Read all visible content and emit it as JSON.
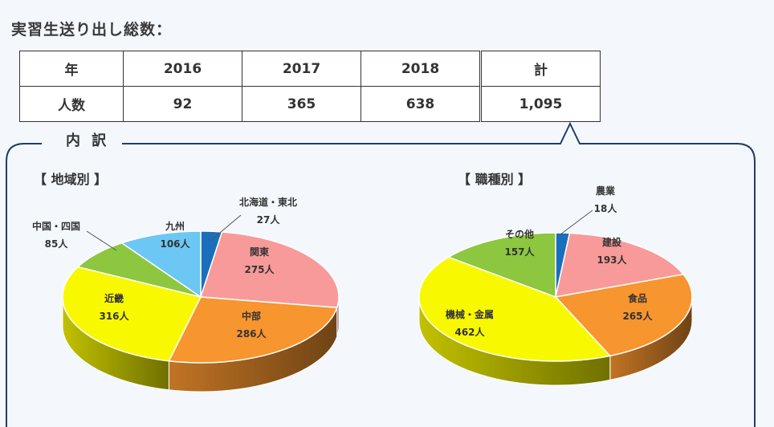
{
  "heading": "実習生送り出し総数：",
  "summary_table": {
    "header": [
      "年",
      "2016",
      "2017",
      "2018",
      "計"
    ],
    "row_label": "人数",
    "values": [
      "92",
      "365",
      "638",
      "1,095"
    ]
  },
  "section_title": "内 訳",
  "chart_data": [
    {
      "type": "pie",
      "title": "【 地域別 】",
      "unit": "人",
      "slices": [
        {
          "label": "北海道・東北",
          "value": 27,
          "color": "#1a6fbd"
        },
        {
          "label": "関東",
          "value": 275,
          "color": "#f89a9a"
        },
        {
          "label": "中部",
          "value": 286,
          "color": "#f7952e"
        },
        {
          "label": "近畿",
          "value": 316,
          "color": "#f8f800"
        },
        {
          "label": "中国・四国",
          "value": 85,
          "color": "#8dc63f"
        },
        {
          "label": "九州",
          "value": 106,
          "color": "#6cc7f4"
        }
      ]
    },
    {
      "type": "pie",
      "title": "【 職種別 】",
      "unit": "人",
      "slices": [
        {
          "label": "農業",
          "value": 18,
          "color": "#1a6fbd"
        },
        {
          "label": "建設",
          "value": 193,
          "color": "#f89a9a"
        },
        {
          "label": "食品",
          "value": 265,
          "color": "#f7952e"
        },
        {
          "label": "機械・金属",
          "value": 462,
          "color": "#f8f800"
        },
        {
          "label": "その他",
          "value": 157,
          "color": "#8dc63f"
        }
      ]
    }
  ]
}
